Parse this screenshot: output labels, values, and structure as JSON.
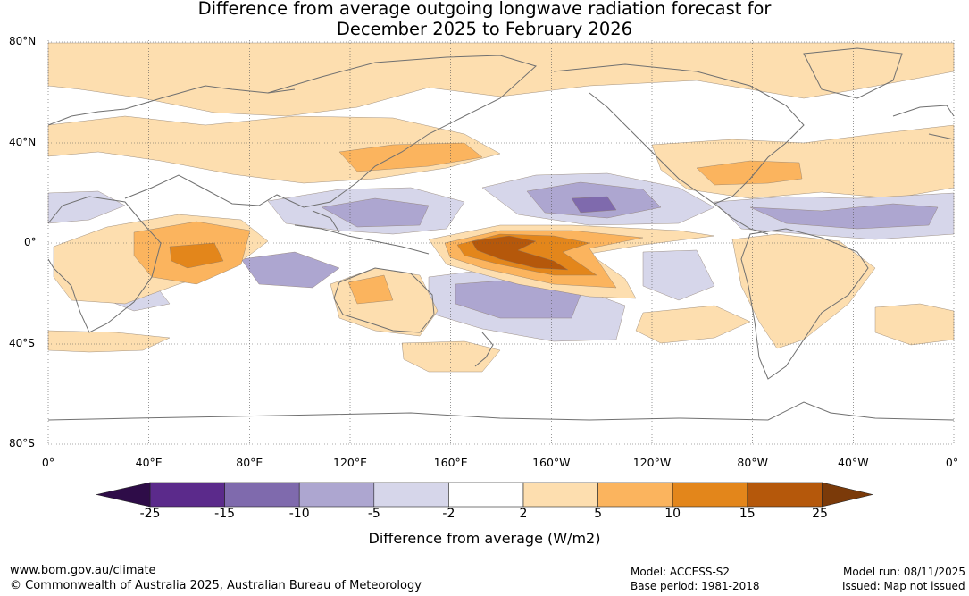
{
  "title": {
    "line1": "Difference from average outgoing longwave radiation forecast for",
    "line2": "December 2025 to February 2026"
  },
  "map": {
    "lat_labels": [
      "80°N",
      "40°N",
      "0°",
      "40°S",
      "80°S"
    ],
    "lon_labels": [
      "0°",
      "40°E",
      "80°E",
      "120°E",
      "160°E",
      "160°W",
      "120°W",
      "80°W",
      "40°W",
      "0°"
    ],
    "lon_values": [
      0,
      40,
      80,
      120,
      160,
      200,
      240,
      280,
      320,
      360
    ],
    "lat_values": [
      80,
      40,
      0,
      -40,
      -80
    ],
    "anomaly_color_key": {
      "strong_positive": "#b5580b",
      "positive_high": "#e3861b",
      "positive_mid": "#fbb45e",
      "positive_low": "#fddeaf",
      "negative_low": "#d6d6ea",
      "negative_mid": "#ada6d0",
      "negative_high": "#7f6aad"
    },
    "coastline_color": "#707070"
  },
  "colorbar": {
    "ticks": [
      "-25",
      "-15",
      "-10",
      "-5",
      "-2",
      "2",
      "5",
      "10",
      "15",
      "25"
    ],
    "colors": [
      "#5b2a8b",
      "#7f6aad",
      "#ada6d0",
      "#d6d6ea",
      "#ffffff",
      "#fddeaf",
      "#fbb45e",
      "#e3861b",
      "#b5580b"
    ],
    "under_color": "#2e0c48",
    "over_color": "#7b3a09",
    "label": "Difference from average (W/m2)"
  },
  "footer": {
    "website": "www.bom.gov.au/climate",
    "copyright": "© Commonwealth of Australia 2025, Australian Bureau of Meteorology",
    "model": "Model: ACCESS-S2",
    "base_period": "Base period: 1981-2018",
    "model_run": "Model run: 08/11/2025",
    "issued": "Issued: Map not issued"
  }
}
